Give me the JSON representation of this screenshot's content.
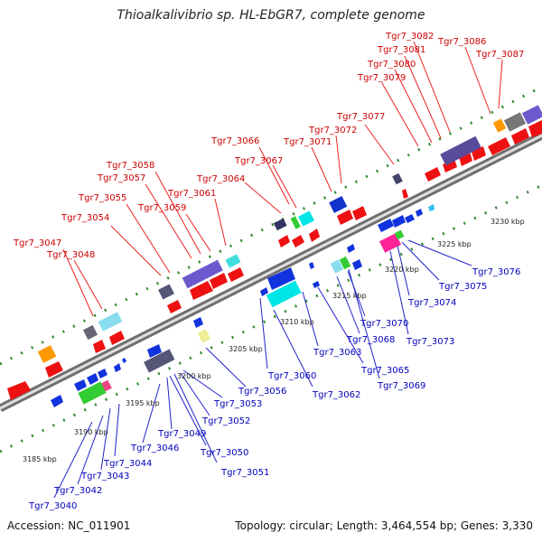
{
  "header": {
    "title": "Thioalkalivibrio sp. HL-EbGR7, complete genome"
  },
  "footer": {
    "accession": "Accession: NC_011901",
    "summary": "Topology: circular; Length: 3,464,554 bp; Genes: 3,330"
  },
  "scale_labels": [
    "3185 kbp",
    "3190 kbp",
    "3195 kbp",
    "3200 kbp",
    "3205 kbp",
    "3210 kbp",
    "3215 kbp",
    "3220 kbp",
    "3225 kbp",
    "3230 kbp"
  ],
  "top_genes": [
    "Tgr7_3047",
    "Tgr7_3048",
    "Tgr7_3054",
    "Tgr7_3055",
    "Tgr7_3057",
    "Tgr7_3058",
    "Tgr7_3059",
    "Tgr7_3061",
    "Tgr7_3064",
    "Tgr7_3066",
    "Tgr7_3067",
    "Tgr7_3071",
    "Tgr7_3072",
    "Tgr7_3077",
    "Tgr7_3079",
    "Tgr7_3080",
    "Tgr7_3081",
    "Tgr7_3082",
    "Tgr7_3086",
    "Tgr7_3087"
  ],
  "bottom_genes": [
    "Tgr7_3040",
    "Tgr7_3042",
    "Tgr7_3043",
    "Tgr7_3044",
    "Tgr7_3046",
    "Tgr7_3049",
    "Tgr7_3050",
    "Tgr7_3051",
    "Tgr7_3052",
    "Tgr7_3053",
    "Tgr7_3056",
    "Tgr7_3060",
    "Tgr7_3062",
    "Tgr7_3063",
    "Tgr7_3065",
    "Tgr7_3068",
    "Tgr7_3069",
    "Tgr7_3070",
    "Tgr7_3073",
    "Tgr7_3074",
    "Tgr7_3075",
    "Tgr7_3076"
  ]
}
